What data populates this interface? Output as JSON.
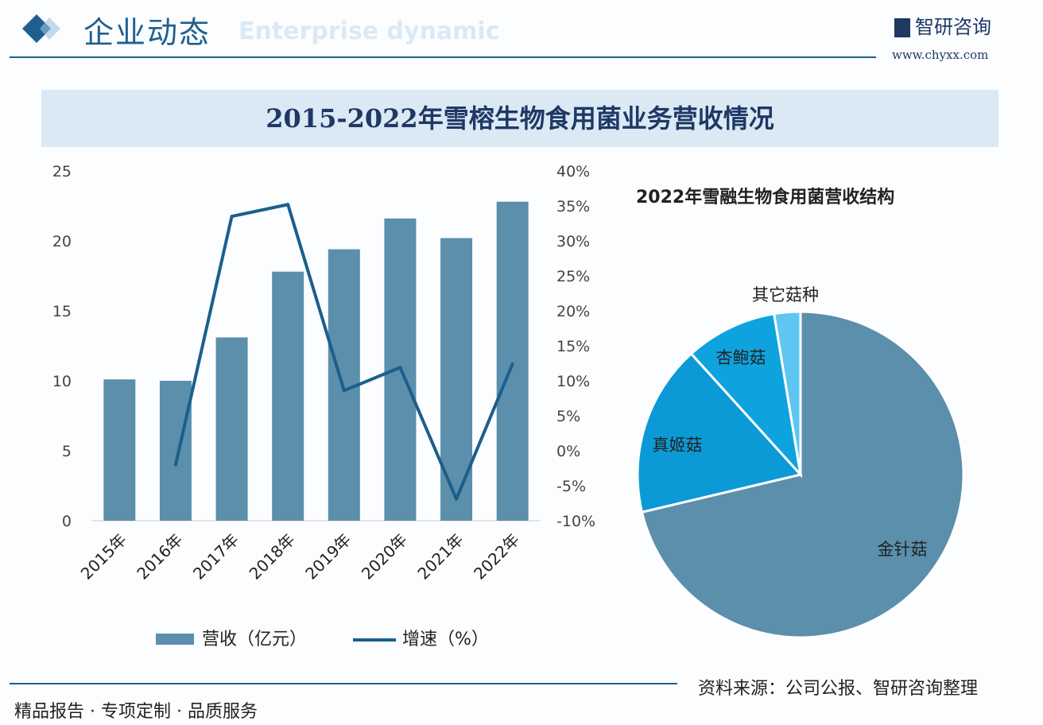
{
  "header": {
    "title": "企业动态",
    "subtitle": "Enterprise dynamic",
    "logo": "智研咨询",
    "url": "www.chyxx.com"
  },
  "banner": {
    "title": "2015-2022年雪榕生物食用菌业务营收情况"
  },
  "footer": {
    "slogan": "精品报告 · 专项定制 · 品质服务",
    "source": "资料来源：公司公报、智研咨询整理"
  },
  "colors": {
    "bar": "#5b8fac",
    "line": "#1b5f8c",
    "pie": [
      "#5b8fac",
      "#0c9ad6",
      "#0ea3df",
      "#5fc6f2"
    ]
  },
  "chart_data": [
    {
      "type": "bar+line",
      "categories": [
        "2015年",
        "2016年",
        "2017年",
        "2018年",
        "2019年",
        "2020年",
        "2021年",
        "2022年"
      ],
      "series": [
        {
          "name": "营收（亿元）",
          "type": "bar",
          "axis": "left",
          "values": [
            10.1,
            10.0,
            13.1,
            17.8,
            19.4,
            21.6,
            20.2,
            22.8
          ]
        },
        {
          "name": "增速（%）",
          "type": "line",
          "axis": "right",
          "values": [
            null,
            -2.0,
            33.5,
            35.2,
            8.6,
            11.9,
            -6.9,
            12.4
          ]
        }
      ],
      "left_axis": {
        "ylim": [
          0,
          25
        ],
        "ticks": [
          "0",
          "5",
          "10",
          "15",
          "20",
          "25"
        ]
      },
      "right_axis": {
        "ylim": [
          -10,
          40
        ],
        "ticks": [
          "-10%",
          "-5%",
          "0%",
          "5%",
          "10%",
          "15%",
          "20%",
          "25%",
          "30%",
          "35%",
          "40%"
        ]
      },
      "legend": "bottom",
      "grid": false
    },
    {
      "type": "pie",
      "title": "2022年雪融生物食用菌营收结构",
      "slices": [
        {
          "label": "金针菇",
          "value": 71.3
        },
        {
          "label": "真姬菇",
          "value": 17.0
        },
        {
          "label": "杏鲍菇",
          "value": 9.1
        },
        {
          "label": "其它菇种",
          "value": 2.6
        }
      ]
    }
  ]
}
